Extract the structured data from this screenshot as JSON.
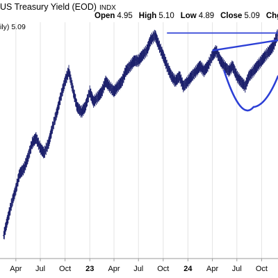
{
  "header": {
    "title": "US Treasury Yield (EOD)",
    "exchange": "INDX",
    "open_label": "Open",
    "open_value": "4.95",
    "high_label": "High",
    "high_value": "5.10",
    "low_label": "Low",
    "low_value": "4.89",
    "close_label": "Close",
    "close_value": "5.09",
    "chg_label": "Chg"
  },
  "legend": {
    "text": "ily)",
    "value": "5.09"
  },
  "chart_data": {
    "type": "bar",
    "subtype": "ohlc",
    "x_axis_labels": [
      "Apr",
      "Jul",
      "Oct",
      "23",
      "Apr",
      "Jul",
      "Oct",
      "24",
      "Apr",
      "Jul",
      "Oct"
    ],
    "x_axis_label_dates": [
      "2022-04",
      "2022-07",
      "2022-10",
      "2023-01",
      "2023-04",
      "2023-07",
      "2023-10",
      "2024-01",
      "2024-04",
      "2024-07",
      "2024-10"
    ],
    "xlim": [
      "2022-02",
      "2024-12"
    ],
    "ylim": [
      0.7,
      5.3
    ],
    "series": [
      {
        "x": [
          "2022-02-15",
          "2022-03-01",
          "2022-03-15",
          "2022-04-01",
          "2022-04-15",
          "2022-05-01",
          "2022-05-15",
          "2022-06-01",
          "2022-06-15",
          "2022-07-01",
          "2022-07-15",
          "2022-08-01",
          "2022-08-15",
          "2022-09-01",
          "2022-09-15",
          "2022-10-01",
          "2022-10-15",
          "2022-11-01",
          "2022-11-15",
          "2022-12-01",
          "2022-12-15",
          "2023-01-01",
          "2023-01-15",
          "2023-02-01",
          "2023-02-15",
          "2023-03-01",
          "2023-03-15",
          "2023-04-01",
          "2023-04-15",
          "2023-05-01",
          "2023-05-15",
          "2023-06-01",
          "2023-06-15",
          "2023-07-01",
          "2023-07-15",
          "2023-08-01",
          "2023-08-15",
          "2023-09-01",
          "2023-09-15",
          "2023-10-01",
          "2023-10-15",
          "2023-11-01",
          "2023-11-15",
          "2023-12-01",
          "2023-12-15",
          "2024-01-01",
          "2024-01-15",
          "2024-02-01",
          "2024-02-15",
          "2024-03-01",
          "2024-03-15",
          "2024-04-01",
          "2024-04-15",
          "2024-05-01",
          "2024-05-15",
          "2024-06-01",
          "2024-06-15",
          "2024-07-01",
          "2024-07-15",
          "2024-08-01",
          "2024-08-15",
          "2024-09-01",
          "2024-09-15",
          "2024-10-01",
          "2024-10-15",
          "2024-11-01",
          "2024-11-15",
          "2024-12-01"
        ],
        "y": [
          1.15,
          1.45,
          1.75,
          2.05,
          2.35,
          2.45,
          2.65,
          2.95,
          3.05,
          2.85,
          2.75,
          2.95,
          3.25,
          3.55,
          3.85,
          4.15,
          4.35,
          3.95,
          3.65,
          3.55,
          3.65,
          3.95,
          3.75,
          3.85,
          3.95,
          4.15,
          4.05,
          3.95,
          4.05,
          4.15,
          4.35,
          4.45,
          4.55,
          4.55,
          4.65,
          4.75,
          4.95,
          5.05,
          4.85,
          4.65,
          4.45,
          4.25,
          4.15,
          4.25,
          4.05,
          4.15,
          4.25,
          4.35,
          4.45,
          4.35,
          4.45,
          4.65,
          4.75,
          4.55,
          4.45,
          4.35,
          4.45,
          4.25,
          4.15,
          4.05,
          4.25,
          4.35,
          4.45,
          4.55,
          4.65,
          4.75,
          4.85,
          5.09
        ]
      }
    ],
    "annotations": {
      "resistance_line": {
        "from": [
          "2023-10-15",
          5.09
        ],
        "to": [
          "2024-12-01",
          5.09
        ]
      },
      "upper_trendline": {
        "from": [
          "2024-04-01",
          4.75
        ],
        "to": [
          "2024-12-01",
          4.95
        ]
      },
      "cup_arc": {
        "from": [
          "2024-05-15",
          4.35
        ],
        "bottom": [
          "2024-09-01",
          3.65
        ],
        "to": [
          "2024-12-01",
          4.25
        ]
      }
    }
  }
}
